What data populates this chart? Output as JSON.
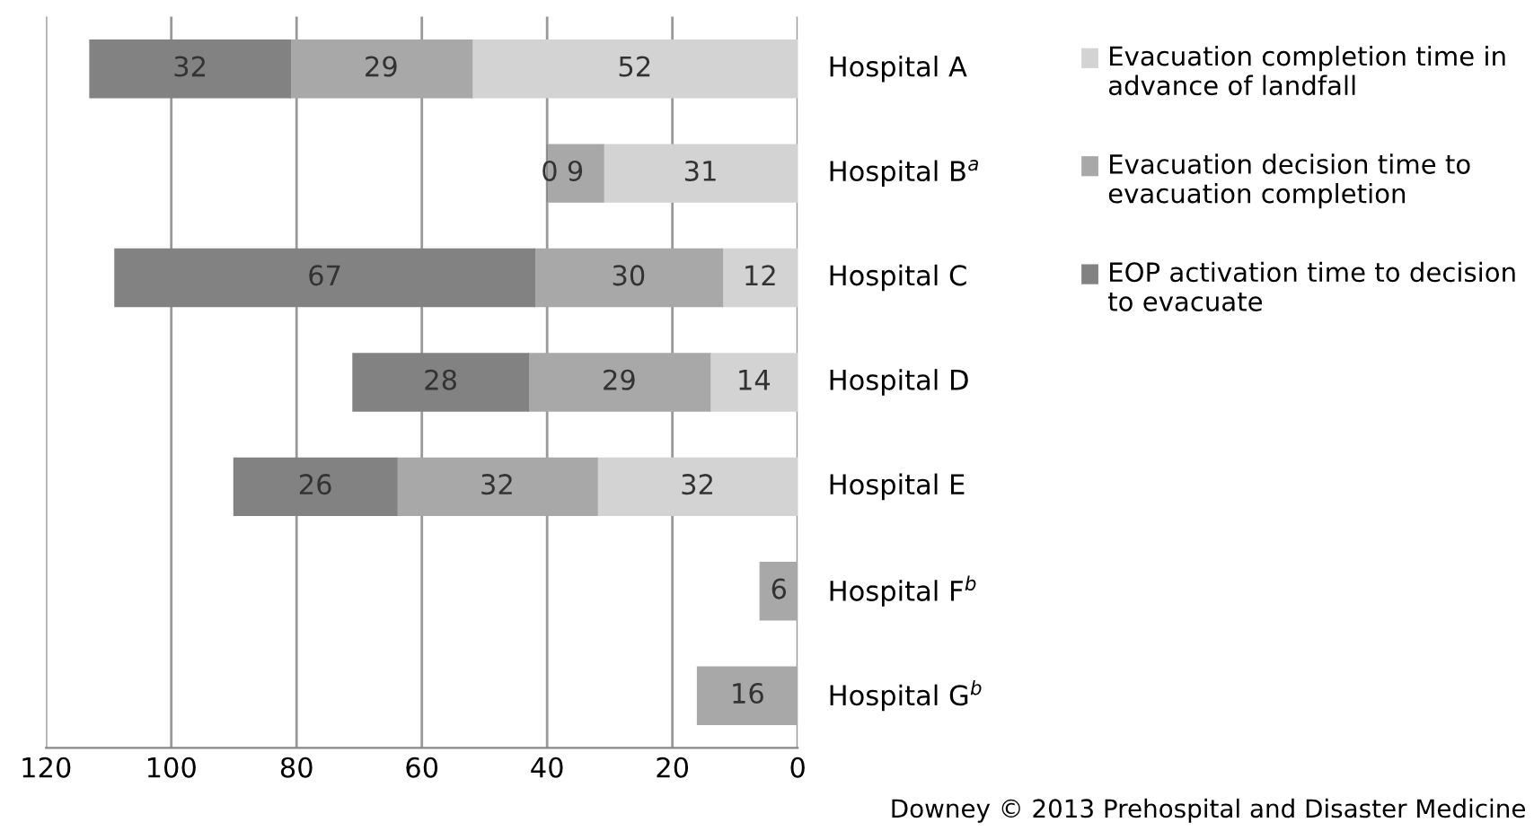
{
  "chart_data": {
    "type": "bar",
    "orientation": "horizontal",
    "stacked": true,
    "categories": [
      "Hospital A",
      "Hospital B$^{a}$",
      "Hospital C",
      "Hospital D",
      "Hospital E",
      "Hospital F$^{b}$",
      "Hospital G$^{b}$"
    ],
    "series": [
      {
        "name": "Evacuation completion time in advance of landfall",
        "color": "#d3d3d3",
        "values": [
          52,
          31,
          12,
          14,
          32,
          null,
          null
        ]
      },
      {
        "name": "Evacuation decision time to evacuation completion",
        "color": "#a8a8a8",
        "values": [
          29,
          9,
          30,
          29,
          32,
          6,
          16
        ]
      },
      {
        "name": "EOP activation time to decision to evacuate",
        "color": "#828282",
        "values": [
          32,
          0,
          67,
          28,
          26,
          null,
          null
        ]
      }
    ],
    "xlim": [
      120,
      0
    ],
    "xticks": [
      120,
      100,
      80,
      60,
      40,
      20,
      0
    ],
    "grid": "x",
    "legend": "right",
    "data_labels": true,
    "annotations": [
      "Downey © 2013 Prehospital and Disaster Medicine"
    ]
  }
}
